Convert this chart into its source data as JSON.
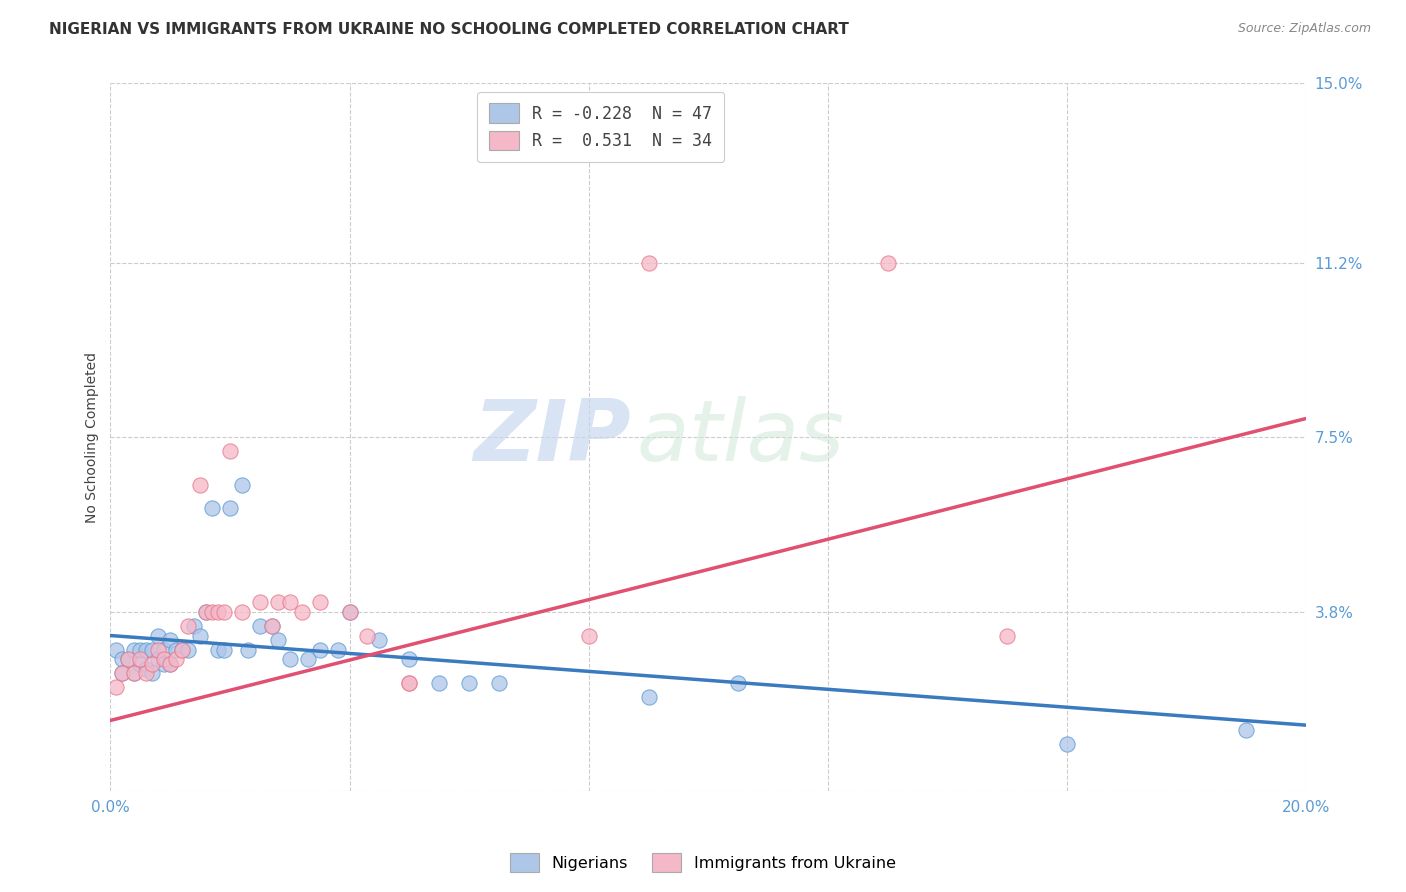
{
  "title": "NIGERIAN VS IMMIGRANTS FROM UKRAINE NO SCHOOLING COMPLETED CORRELATION CHART",
  "source": "Source: ZipAtlas.com",
  "ylabel": "No Schooling Completed",
  "xlim": [
    0.0,
    0.2
  ],
  "ylim": [
    0.0,
    0.15
  ],
  "ytick_vals": [
    0.0,
    0.038,
    0.075,
    0.112,
    0.15
  ],
  "ytick_labels": [
    "",
    "3.8%",
    "7.5%",
    "11.2%",
    "15.0%"
  ],
  "xtick_vals": [
    0.0,
    0.04,
    0.08,
    0.12,
    0.16,
    0.2
  ],
  "xtick_labels": [
    "0.0%",
    "",
    "",
    "",
    "",
    "20.0%"
  ],
  "watermark_zip": "ZIP",
  "watermark_atlas": "atlas",
  "legend_line1": "R = -0.228  N = 47",
  "legend_line2": "R =  0.531  N = 34",
  "nig_color": "#aec6e8",
  "nig_edge": "#5b9bd5",
  "nig_line": "#3a7abf",
  "ukr_color": "#f4b8c8",
  "ukr_edge": "#e8768a",
  "ukr_line": "#e05070",
  "title_fontsize": 11,
  "source_fontsize": 9,
  "tick_fontsize": 11,
  "ylabel_fontsize": 10,
  "nigerians_x": [
    0.001,
    0.002,
    0.002,
    0.003,
    0.004,
    0.004,
    0.005,
    0.005,
    0.006,
    0.006,
    0.007,
    0.007,
    0.008,
    0.008,
    0.009,
    0.009,
    0.01,
    0.01,
    0.011,
    0.012,
    0.013,
    0.014,
    0.015,
    0.016,
    0.017,
    0.018,
    0.019,
    0.02,
    0.022,
    0.023,
    0.025,
    0.027,
    0.028,
    0.03,
    0.033,
    0.035,
    0.038,
    0.04,
    0.045,
    0.05,
    0.055,
    0.06,
    0.065,
    0.09,
    0.105,
    0.16,
    0.19
  ],
  "nigerians_y": [
    0.03,
    0.028,
    0.025,
    0.028,
    0.03,
    0.025,
    0.03,
    0.027,
    0.03,
    0.026,
    0.03,
    0.025,
    0.033,
    0.028,
    0.03,
    0.027,
    0.032,
    0.027,
    0.03,
    0.03,
    0.03,
    0.035,
    0.033,
    0.038,
    0.06,
    0.03,
    0.03,
    0.06,
    0.065,
    0.03,
    0.035,
    0.035,
    0.032,
    0.028,
    0.028,
    0.03,
    0.03,
    0.038,
    0.032,
    0.028,
    0.023,
    0.023,
    0.023,
    0.02,
    0.023,
    0.01,
    0.013
  ],
  "ukraine_x": [
    0.001,
    0.002,
    0.003,
    0.004,
    0.005,
    0.006,
    0.007,
    0.008,
    0.009,
    0.01,
    0.011,
    0.012,
    0.013,
    0.015,
    0.016,
    0.017,
    0.018,
    0.019,
    0.02,
    0.022,
    0.025,
    0.027,
    0.028,
    0.03,
    0.032,
    0.035,
    0.04,
    0.043,
    0.05,
    0.05,
    0.08,
    0.09,
    0.13,
    0.15
  ],
  "ukraine_y": [
    0.022,
    0.025,
    0.028,
    0.025,
    0.028,
    0.025,
    0.027,
    0.03,
    0.028,
    0.027,
    0.028,
    0.03,
    0.035,
    0.065,
    0.038,
    0.038,
    0.038,
    0.038,
    0.072,
    0.038,
    0.04,
    0.035,
    0.04,
    0.04,
    0.038,
    0.04,
    0.038,
    0.033,
    0.023,
    0.023,
    0.033,
    0.112,
    0.112,
    0.033
  ],
  "nig_trend_x0": 0.0,
  "nig_trend_y0": 0.033,
  "nig_trend_x1": 0.2,
  "nig_trend_y1": 0.014,
  "ukr_trend_x0": 0.0,
  "ukr_trend_y0": 0.015,
  "ukr_trend_x1": 0.2,
  "ukr_trend_y1": 0.079
}
